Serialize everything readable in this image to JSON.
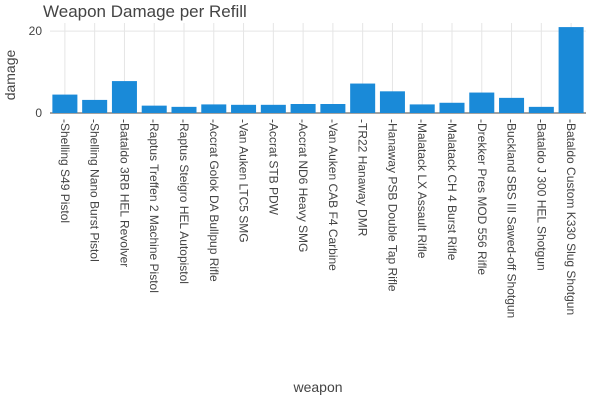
{
  "chart_data": {
    "type": "bar",
    "title": "Weapon Damage per Refill",
    "xlabel": "weapon",
    "ylabel": "damage",
    "ylim": [
      0,
      22
    ],
    "yticks": [
      0,
      20
    ],
    "grid": true,
    "color": "#1a8ad8",
    "categories": [
      "Shelling S49 Pistol",
      "Shelling Nano Burst Pistol",
      "Bataldo 3RB HEL Revolver",
      "Raptus Treffen 2 Machine Pistol",
      "Raptus Steigro HEL Autopistol",
      "Accrat Golok DA Bullpup Rifle",
      "Van Auken LTC5 SMG",
      "Accrat STB PDW",
      "Accrat ND6 Heavy SMG",
      "Van Auken CAB F4 Carbine",
      "TR22 Hanaway DMR",
      "Hanaway PSB Double Tap Rifle",
      "Malatack LX Assault Rifle",
      "Malatack CH 4 Burst Rifle",
      "Drekker Pres MOD 556 Rifle",
      "Buckland SBS III Sawed-off Shotgun",
      "Bataldo J 300 HEL Shotgun",
      "Bataldo Custom K330 Slug Shotgun"
    ],
    "values": [
      4.5,
      3.2,
      7.8,
      1.8,
      1.5,
      2.1,
      2.0,
      2.0,
      2.2,
      2.2,
      7.2,
      5.3,
      2.1,
      2.5,
      5.0,
      3.7,
      1.5,
      21.0
    ]
  }
}
